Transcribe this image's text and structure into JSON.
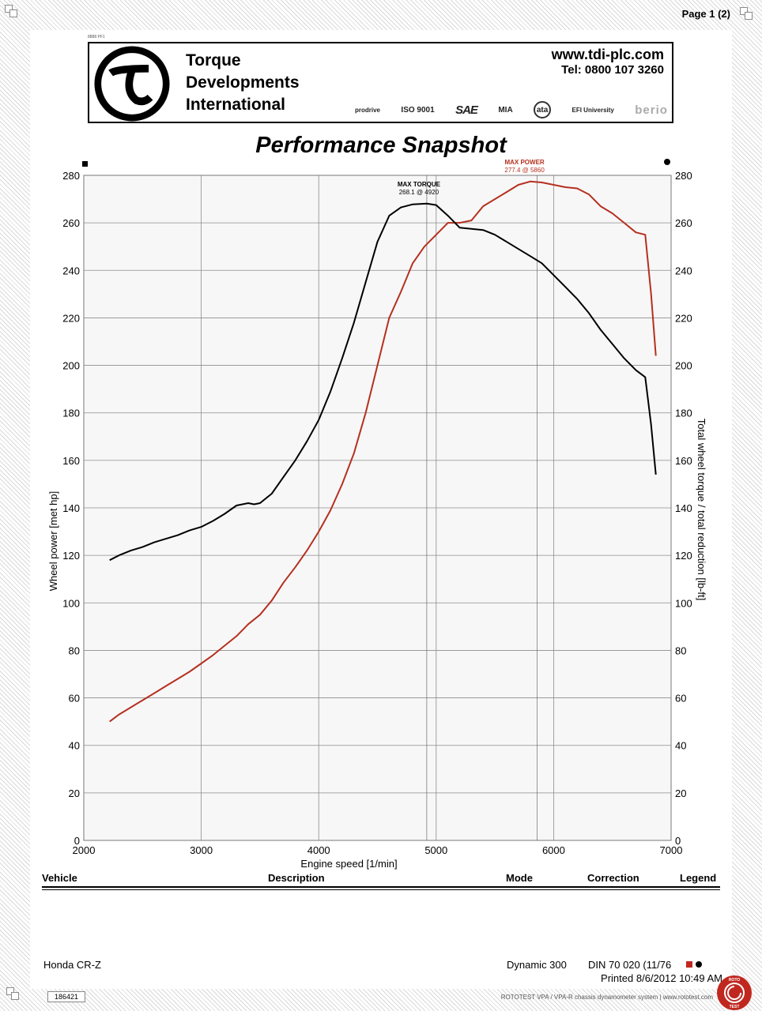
{
  "page": {
    "page_number": "Page 1 (2)",
    "tiny_code": "8888 PF1"
  },
  "header": {
    "company_lines": [
      "Torque",
      "Developments",
      "International"
    ],
    "website": "www.tdi-plc.com",
    "phone": "Tel: 0800 107 3260",
    "certifications": [
      "prodrive",
      "ISO 9001",
      "SAE",
      "MIA",
      "ata",
      "EFI University",
      "berio"
    ]
  },
  "colors": {
    "power": "#b5301f",
    "torque": "#000000",
    "grid": "#8c8c8c",
    "plot_bg": "#f7f7f7"
  },
  "chart_data": {
    "type": "line",
    "title": "Performance Snapshot",
    "xlabel": "Engine speed [1/min]",
    "ylabel_left": "Wheel power [met hp]",
    "ylabel_right": "Total wheel torque / total reduction [lb-ft]",
    "xlim": [
      2000,
      7000
    ],
    "ylim": [
      0,
      280
    ],
    "x_ticks": [
      2000,
      3000,
      4000,
      5000,
      6000,
      7000
    ],
    "y_ticks": [
      0,
      20,
      40,
      60,
      80,
      100,
      120,
      140,
      160,
      180,
      200,
      220,
      240,
      260,
      280
    ],
    "grid": true,
    "annotations": [
      {
        "label": "MAX TORQUE",
        "value": "268.1 @ 4920",
        "series": "torque",
        "x": 4920,
        "y": 268.1
      },
      {
        "label": "MAX POWER",
        "value": "277.4 @ 5860",
        "series": "power",
        "x": 5860,
        "y": 277.4
      }
    ],
    "series": [
      {
        "key": "power",
        "x": [
          2220,
          2300,
          2400,
          2500,
          2600,
          2700,
          2800,
          2900,
          3000,
          3100,
          3200,
          3300,
          3400,
          3500,
          3600,
          3700,
          3800,
          3900,
          4000,
          4100,
          4200,
          4300,
          4400,
          4500,
          4600,
          4700,
          4800,
          4900,
          5000,
          5100,
          5200,
          5300,
          5400,
          5500,
          5600,
          5700,
          5800,
          5900,
          6000,
          6100,
          6200,
          6300,
          6400,
          6500,
          6600,
          6700,
          6780,
          6830,
          6870
        ],
        "values": [
          50,
          53,
          56,
          59,
          62,
          65,
          68,
          71,
          74.5,
          78,
          82,
          86,
          91,
          95,
          101,
          108.5,
          115,
          122,
          130,
          139,
          150,
          163,
          180,
          200,
          220,
          231,
          243,
          250,
          255,
          260,
          260,
          261,
          267,
          270,
          273,
          276,
          277.4,
          277,
          276,
          275,
          274.5,
          272,
          267,
          264,
          260,
          256,
          255,
          230,
          204
        ]
      },
      {
        "key": "torque",
        "x": [
          2220,
          2300,
          2400,
          2500,
          2600,
          2700,
          2800,
          2900,
          3000,
          3100,
          3200,
          3300,
          3400,
          3450,
          3500,
          3600,
          3700,
          3800,
          3900,
          4000,
          4100,
          4200,
          4300,
          4400,
          4500,
          4600,
          4700,
          4800,
          4920,
          5000,
          5100,
          5200,
          5300,
          5400,
          5500,
          5600,
          5700,
          5800,
          5900,
          6000,
          6100,
          6200,
          6300,
          6400,
          6500,
          6600,
          6700,
          6780,
          6830,
          6870
        ],
        "values": [
          118,
          120,
          122,
          123.5,
          125.5,
          127,
          128.5,
          130.5,
          132,
          134.5,
          137.5,
          141,
          142,
          141.5,
          142,
          146,
          153,
          160,
          168,
          177,
          189,
          203,
          218,
          235,
          252,
          263,
          266.5,
          267.8,
          268.1,
          267.5,
          263,
          258,
          257.5,
          257,
          255,
          252,
          249,
          246,
          243,
          238,
          233,
          228,
          222,
          215,
          209,
          203,
          198,
          195,
          175,
          154
        ]
      }
    ]
  },
  "table": {
    "headers": {
      "vehicle": "Vehicle",
      "description": "Description",
      "mode": "Mode",
      "correction": "Correction",
      "legend": "Legend"
    },
    "row": {
      "vehicle": "Honda  CR-Z",
      "mode": "Dynamic 300",
      "correction": "DIN 70 020 (11/76"
    }
  },
  "footer": {
    "printed": "Printed 8/6/2012 10:49 AM",
    "id": "186421",
    "text": "ROTOTEST VPA / VPA-R chassis dynamometer system | www.rototest.com",
    "roto_logo_text": [
      "ROTO",
      "TEST"
    ]
  }
}
